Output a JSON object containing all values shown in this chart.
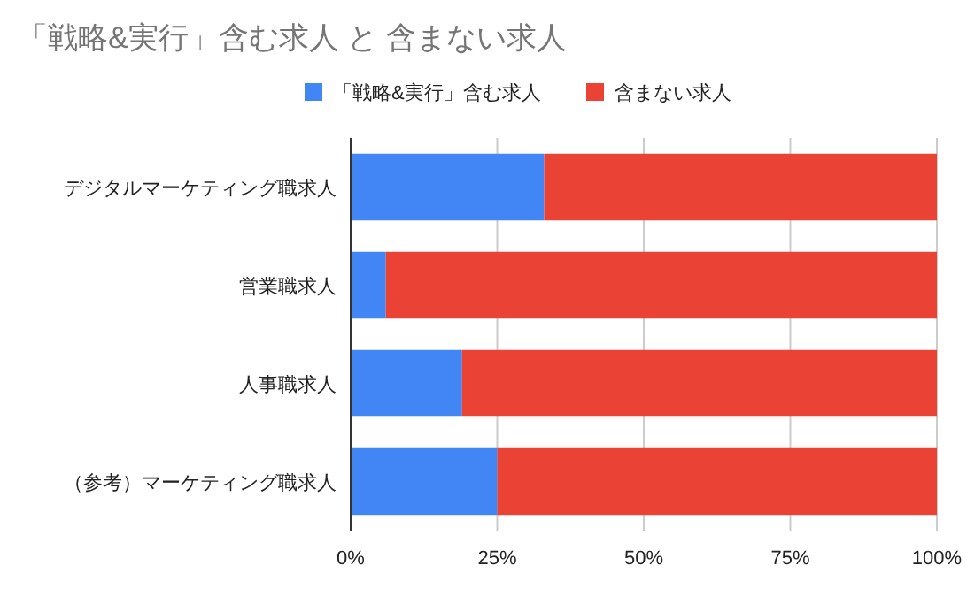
{
  "chart_data": {
    "type": "bar",
    "orientation": "horizontal",
    "stacked": true,
    "title": "「戦略&実行」含む求人 と 含まない求人",
    "categories": [
      "デジタルマーケティング職求人",
      "営業職求人",
      "人事職求人",
      "（参考）マーケティング職求人"
    ],
    "series": [
      {
        "name": "「戦略&実行」含む求人",
        "color": "#4285f4",
        "values": [
          33,
          6,
          19,
          25
        ]
      },
      {
        "name": "含まない求人",
        "color": "#ea4335",
        "values": [
          67,
          94,
          81,
          75
        ]
      }
    ],
    "xlim": [
      0,
      100
    ],
    "xticks": [
      {
        "value": 0,
        "label": "0%"
      },
      {
        "value": 25,
        "label": "25%"
      },
      {
        "value": 50,
        "label": "50%"
      },
      {
        "value": 75,
        "label": "75%"
      },
      {
        "value": 100,
        "label": "100%"
      }
    ],
    "grid": "x",
    "legend": "top"
  }
}
